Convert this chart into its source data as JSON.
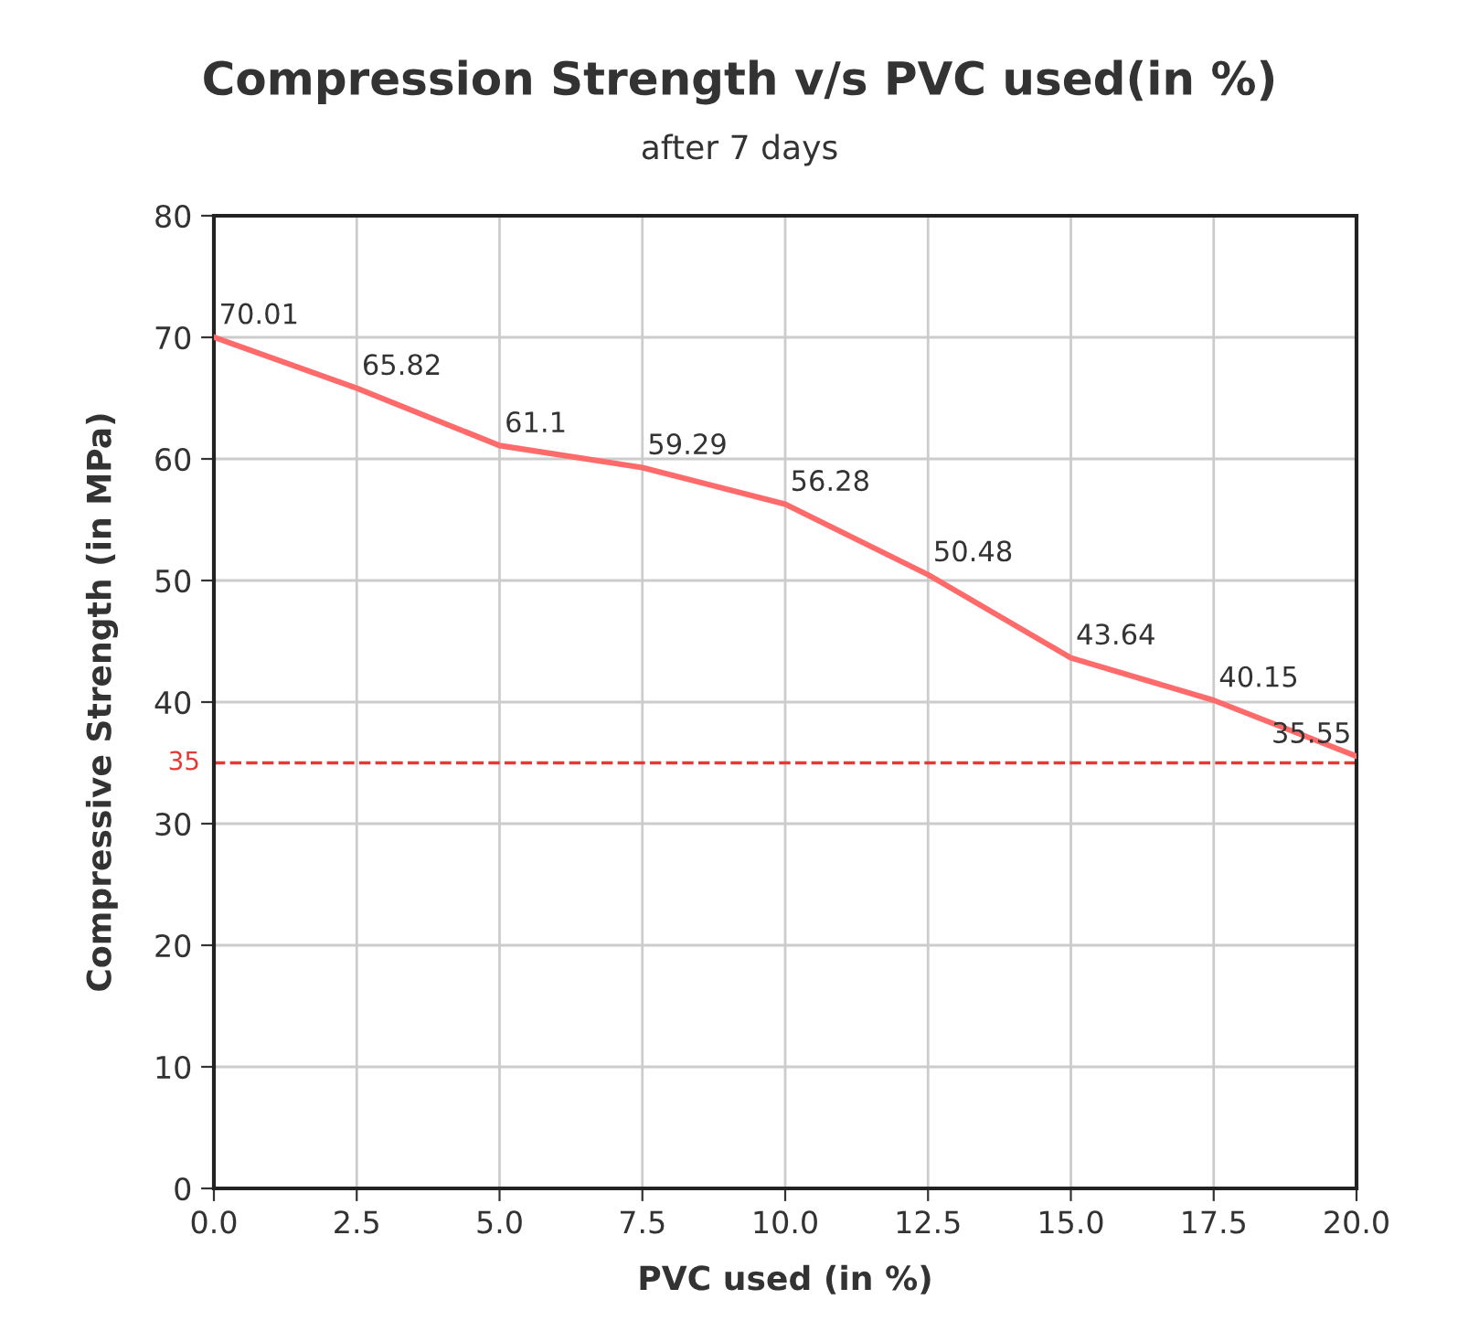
{
  "chart_data": {
    "type": "line",
    "title": "Compression Strength v/s PVC used(in %)",
    "subtitle": "after 7 days",
    "xlabel": "PVC used (in %)",
    "ylabel": "Compressive Strength (in MPa)",
    "x": [
      0,
      2.5,
      5,
      7.5,
      10,
      12.5,
      15,
      17.5,
      20
    ],
    "series": [
      {
        "color": "#ff6b6b",
        "values": [
          70.01,
          65.82,
          61.1,
          59.29,
          56.28,
          50.48,
          43.64,
          40.15,
          35.55
        ]
      }
    ],
    "data_labels": true,
    "xlim": [
      0,
      20
    ],
    "ylim": [
      0,
      80
    ],
    "xticks": [
      {
        "value": 0,
        "label": "0.0"
      },
      {
        "value": 2.5,
        "label": "2.5"
      },
      {
        "value": 5,
        "label": "5.0"
      },
      {
        "value": 7.5,
        "label": "7.5"
      },
      {
        "value": 10,
        "label": "10.0"
      },
      {
        "value": 12.5,
        "label": "12.5"
      },
      {
        "value": 15,
        "label": "15.0"
      },
      {
        "value": 17.5,
        "label": "17.5"
      },
      {
        "value": 20,
        "label": "20.0"
      }
    ],
    "yticks": [
      0,
      10,
      20,
      30,
      40,
      50,
      60,
      70,
      80
    ],
    "ref_lines": [
      {
        "axis": "y",
        "value": 35,
        "label": "35",
        "color": "#e53935",
        "line_style": "dashed"
      }
    ],
    "grid": true,
    "marker": "none",
    "line_style": "solid"
  }
}
